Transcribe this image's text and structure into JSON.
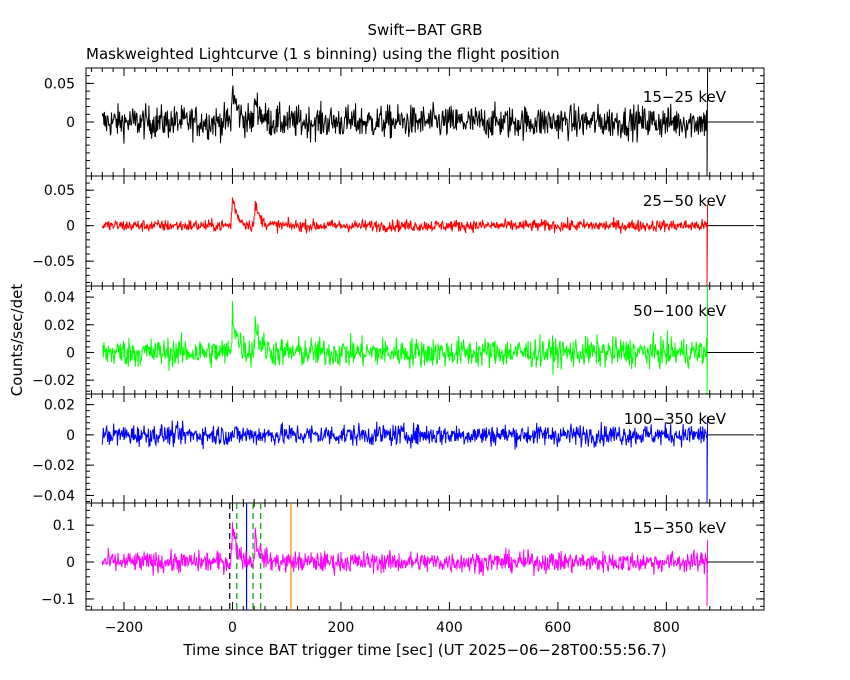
{
  "title": "Swift−BAT GRB",
  "subtitle": "Maskweighted Lightcurve (1 s binning) using the flight position",
  "xlabel": "Time since BAT trigger time [sec] (UT 2025−06−28T00:55:56.7)",
  "ylabel": "Counts/sec/det",
  "chart_data": {
    "type": "line",
    "xlim": [
      -270,
      980
    ],
    "x_ticks": [
      "−200",
      "0",
      "200",
      "400",
      "600",
      "800"
    ],
    "x_tick_values": [
      -200,
      0,
      200,
      400,
      600,
      800
    ],
    "data_range": [
      -240,
      875
    ],
    "pulses": [
      {
        "t": 0,
        "width": 9,
        "amplitude_fraction": 0.75
      },
      {
        "t": 42,
        "width": 9,
        "amplitude_fraction": 0.55
      }
    ],
    "panels": [
      {
        "name": "15−25 keV",
        "color": "#000000",
        "ylim": [
          -0.07,
          0.07
        ],
        "tick_values": [
          0.05,
          0
        ],
        "tick_labels": [
          "0.05",
          "0"
        ],
        "noise_sigma": 0.015,
        "peak": 0.06,
        "end_spike": [
          -0.07,
          0.07
        ]
      },
      {
        "name": "25−50 keV",
        "color": "#ff0000",
        "ylim": [
          -0.085,
          0.07
        ],
        "tick_values": [
          0.05,
          0,
          -0.05
        ],
        "tick_labels": [
          "0.05",
          "0",
          "−0.05"
        ],
        "noise_sigma": 0.006,
        "peak": 0.055,
        "end_spike": [
          -0.085,
          0.03
        ]
      },
      {
        "name": "50−100 keV",
        "color": "#00ff00",
        "ylim": [
          -0.03,
          0.048
        ],
        "tick_values": [
          0.04,
          0.02,
          0,
          -0.02
        ],
        "tick_labels": [
          "0.04",
          "0.02",
          "0",
          "−0.02"
        ],
        "noise_sigma": 0.0075,
        "peak": 0.04,
        "end_spike": [
          -0.03,
          0.048
        ]
      },
      {
        "name": "100−350 keV",
        "color": "#0000ff",
        "ylim": [
          -0.045,
          0.027
        ],
        "tick_values": [
          0.02,
          0,
          -0.02,
          -0.04
        ],
        "tick_labels": [
          "0.02",
          "0",
          "−0.02",
          "−0.04"
        ],
        "noise_sigma": 0.005,
        "peak": 0.0,
        "end_spike": [
          -0.045,
          0.012
        ]
      },
      {
        "name": "15−350 keV",
        "color": "#ff00ff",
        "ylim": [
          -0.13,
          0.16
        ],
        "tick_values": [
          0.1,
          0,
          -0.1
        ],
        "tick_labels": [
          "0.1",
          "0",
          "−0.1"
        ],
        "noise_sigma": 0.02,
        "peak": 0.13,
        "end_spike": [
          -0.12,
          0.06
        ],
        "vlines": [
          {
            "t": -5,
            "color": "#000000",
            "style": "dashed"
          },
          {
            "t": 8,
            "color": "#00a000",
            "style": "dashed"
          },
          {
            "t": 26,
            "color": "#0000ff",
            "style": "solid"
          },
          {
            "t": 38,
            "color": "#00a000",
            "style": "dashed"
          },
          {
            "t": 52,
            "color": "#00a000",
            "style": "dashed"
          },
          {
            "t": 108,
            "color": "#ff8000",
            "style": "solid"
          }
        ]
      }
    ]
  }
}
